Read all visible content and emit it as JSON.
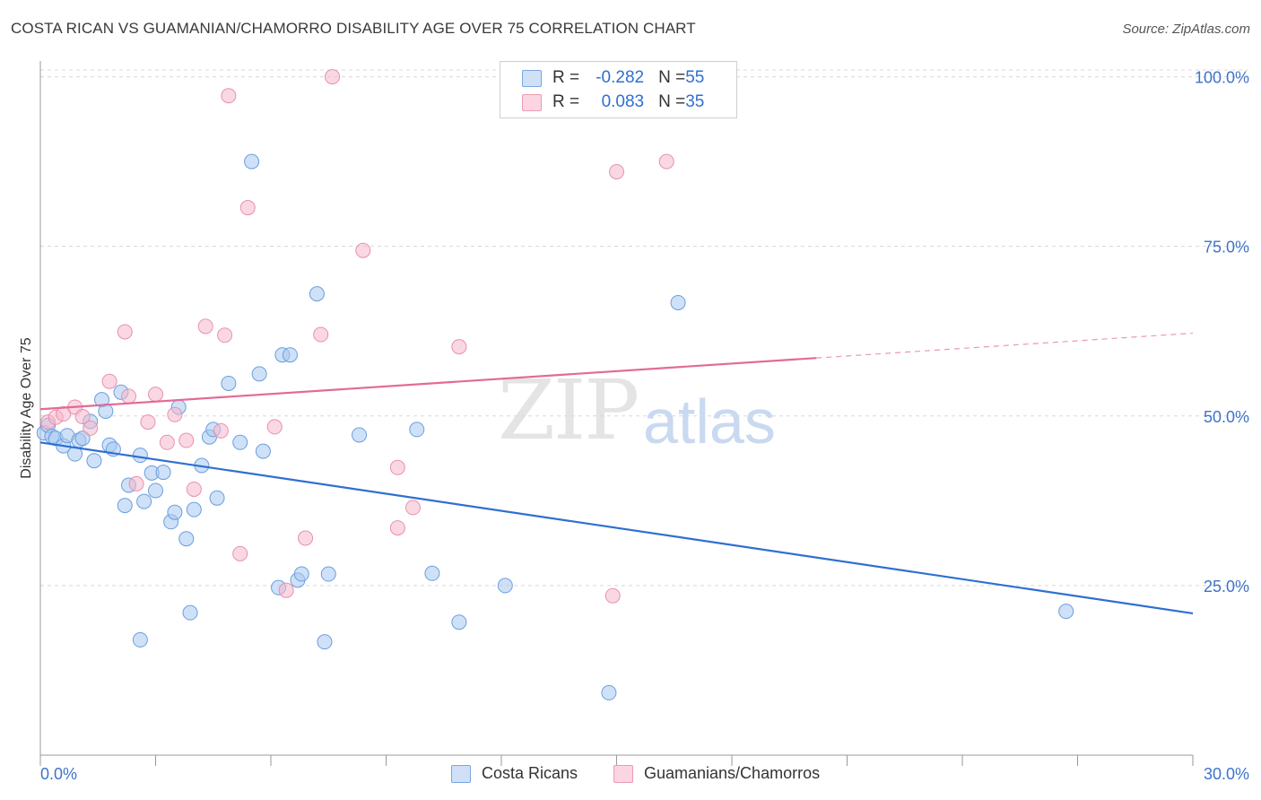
{
  "title": "COSTA RICAN VS GUAMANIAN/CHAMORRO DISABILITY AGE OVER 75 CORRELATION CHART",
  "source": "Source: ZipAtlas.com",
  "watermark": {
    "zip": "ZIP",
    "atlas": "atlas"
  },
  "legend": {
    "rows": [
      {
        "r_label": "R = ",
        "r_value": "-0.282",
        "n_label": "N = ",
        "n_value": "55",
        "color": "#a8c8f0"
      },
      {
        "r_label": "R = ",
        "r_value": "0.083",
        "n_label": "N = ",
        "n_value": "35",
        "color": "#f5b8cc"
      }
    ]
  },
  "bottom_legend": [
    {
      "label": "Costa Ricans",
      "color": "#a8c8f0"
    },
    {
      "label": "Guamanians/Chamorros",
      "color": "#f5b8cc"
    }
  ],
  "chart_data": {
    "type": "scatter",
    "ylabel": "Disability Age Over 75",
    "xlim": [
      0,
      30
    ],
    "ylim": [
      0,
      101
    ],
    "x_tick_labels": [
      "0.0%",
      "30.0%"
    ],
    "y_ticks": [
      25,
      50,
      75,
      100
    ],
    "y_tick_labels": [
      "25.0%",
      "50.0%",
      "75.0%",
      "100.0%"
    ],
    "grid": true,
    "series": [
      {
        "name": "Costa Ricans",
        "color": "#a8c8f0",
        "stroke": "#6a9ee0",
        "line_color": "#2f6fd0",
        "trend": {
          "x": [
            0,
            30
          ],
          "y": [
            46.1,
            20.9
          ],
          "dashed_from": null
        },
        "points": [
          [
            0.1,
            47.5
          ],
          [
            0.2,
            48.6
          ],
          [
            0.3,
            47.0
          ],
          [
            0.4,
            46.7
          ],
          [
            0.6,
            45.6
          ],
          [
            0.7,
            47.1
          ],
          [
            0.9,
            44.4
          ],
          [
            1.0,
            46.4
          ],
          [
            1.1,
            46.7
          ],
          [
            1.3,
            49.2
          ],
          [
            1.4,
            43.4
          ],
          [
            1.6,
            52.4
          ],
          [
            1.7,
            50.7
          ],
          [
            1.8,
            45.7
          ],
          [
            1.9,
            45.1
          ],
          [
            2.1,
            53.5
          ],
          [
            2.2,
            36.8
          ],
          [
            2.3,
            39.8
          ],
          [
            2.6,
            44.2
          ],
          [
            2.7,
            37.4
          ],
          [
            2.9,
            41.6
          ],
          [
            3.0,
            39.0
          ],
          [
            3.2,
            41.7
          ],
          [
            3.4,
            34.4
          ],
          [
            3.5,
            35.8
          ],
          [
            3.6,
            51.3
          ],
          [
            3.8,
            31.9
          ],
          [
            3.9,
            21.0
          ],
          [
            4.0,
            36.2
          ],
          [
            4.2,
            42.7
          ],
          [
            4.4,
            46.9
          ],
          [
            4.6,
            37.9
          ],
          [
            4.5,
            48.0
          ],
          [
            4.9,
            54.8
          ],
          [
            5.2,
            46.1
          ],
          [
            5.5,
            87.5
          ],
          [
            5.7,
            56.2
          ],
          [
            5.8,
            44.8
          ],
          [
            6.2,
            24.7
          ],
          [
            6.3,
            59.0
          ],
          [
            6.5,
            59.0
          ],
          [
            6.7,
            25.8
          ],
          [
            6.8,
            26.7
          ],
          [
            7.2,
            68.0
          ],
          [
            7.4,
            16.7
          ],
          [
            7.5,
            26.7
          ],
          [
            8.3,
            47.2
          ],
          [
            9.8,
            48.0
          ],
          [
            10.2,
            26.8
          ],
          [
            10.9,
            19.6
          ],
          [
            12.1,
            25.0
          ],
          [
            14.8,
            9.2
          ],
          [
            16.6,
            66.7
          ],
          [
            2.6,
            17.0
          ],
          [
            26.7,
            21.2
          ]
        ]
      },
      {
        "name": "Guamanians/Chamorros",
        "color": "#f5b8cc",
        "stroke": "#e890ad",
        "line_color": "#e36a96",
        "trend": {
          "x": [
            0,
            30
          ],
          "y": [
            51.0,
            62.2
          ],
          "dashed_from": 20.2
        },
        "points": [
          [
            0.2,
            49.1
          ],
          [
            0.4,
            49.8
          ],
          [
            0.6,
            50.3
          ],
          [
            0.9,
            51.3
          ],
          [
            1.1,
            49.9
          ],
          [
            1.3,
            48.2
          ],
          [
            1.8,
            55.1
          ],
          [
            2.2,
            62.4
          ],
          [
            2.3,
            52.9
          ],
          [
            2.5,
            40.0
          ],
          [
            2.8,
            49.1
          ],
          [
            3.0,
            53.2
          ],
          [
            3.3,
            46.1
          ],
          [
            3.5,
            50.2
          ],
          [
            3.8,
            46.4
          ],
          [
            4.0,
            39.2
          ],
          [
            4.3,
            63.2
          ],
          [
            4.7,
            47.8
          ],
          [
            4.8,
            61.9
          ],
          [
            4.9,
            97.2
          ],
          [
            5.2,
            29.7
          ],
          [
            5.4,
            80.7
          ],
          [
            6.1,
            48.4
          ],
          [
            6.4,
            24.3
          ],
          [
            6.9,
            32.0
          ],
          [
            7.3,
            62.0
          ],
          [
            7.6,
            100.0
          ],
          [
            8.4,
            74.4
          ],
          [
            9.3,
            42.4
          ],
          [
            9.3,
            33.5
          ],
          [
            9.7,
            36.5
          ],
          [
            10.9,
            60.2
          ],
          [
            14.9,
            23.5
          ],
          [
            16.3,
            87.5
          ],
          [
            15.0,
            86.0
          ]
        ]
      }
    ]
  }
}
